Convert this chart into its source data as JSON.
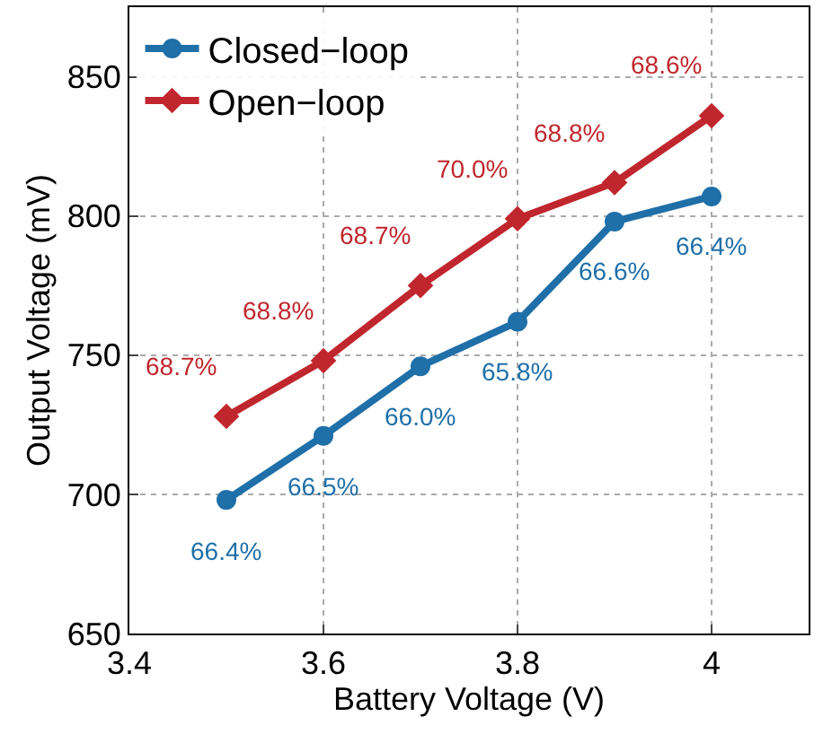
{
  "chart_data": {
    "type": "line",
    "xlabel": "Battery Voltage (V)",
    "ylabel": "Output Voltage (mV)",
    "x": [
      3.5,
      3.6,
      3.7,
      3.8,
      3.9,
      4.0
    ],
    "series": [
      {
        "name": "Closed−loop",
        "color": "#1f6fa8",
        "marker": "circle",
        "values": [
          698,
          721,
          746,
          762,
          798,
          807
        ]
      },
      {
        "name": "Open−loop",
        "color": "#c0262d",
        "marker": "diamond",
        "values": [
          728,
          748,
          775,
          799,
          812,
          836
        ]
      }
    ],
    "annotations": [
      {
        "text": "66.4%",
        "x": 3.5,
        "y": 698
      },
      {
        "text": "66.5%",
        "x": 3.6,
        "y": 721
      },
      {
        "text": "66.0%",
        "x": 3.7,
        "y": 746
      },
      {
        "text": "65.8%",
        "x": 3.8,
        "y": 762
      },
      {
        "text": "66.6%",
        "x": 3.9,
        "y": 798
      },
      {
        "text": "66.4%",
        "x": 4.0,
        "y": 807
      },
      {
        "text": "68.7%",
        "x": 3.5,
        "y": 728
      },
      {
        "text": "68.8%",
        "x": 3.6,
        "y": 748
      },
      {
        "text": "68.7%",
        "x": 3.7,
        "y": 775
      },
      {
        "text": "70.0%",
        "x": 3.8,
        "y": 799
      },
      {
        "text": "68.8%",
        "x": 3.9,
        "y": 812
      },
      {
        "text": "68.6%",
        "x": 4.0,
        "y": 836
      }
    ],
    "xlim": [
      3.4,
      4.1
    ],
    "xticks": [
      3.4,
      3.6,
      3.8,
      {
        "value": 4.0,
        "label": "4"
      }
    ],
    "ylim": [
      650,
      875
    ],
    "yticks": [
      650,
      700,
      750,
      800,
      850
    ],
    "grid": true,
    "legend": "top left",
    "line_style": "solid"
  }
}
